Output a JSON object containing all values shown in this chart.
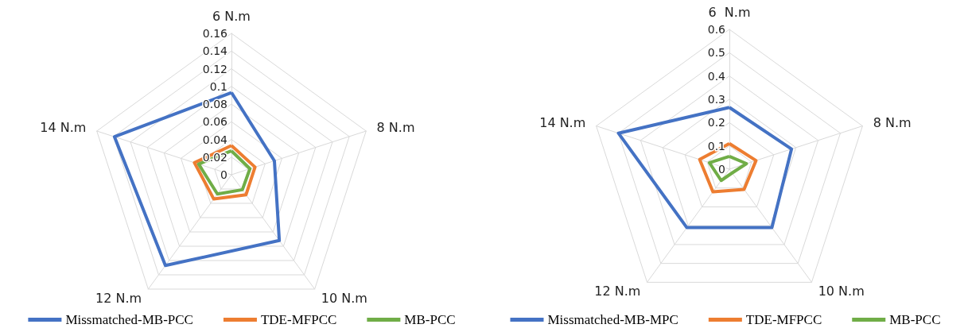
{
  "chart_data": [
    {
      "type": "radar",
      "categories": [
        "6 N.m",
        "8 N.m",
        "10 N.m",
        "12 N.m",
        "14 N.m"
      ],
      "ylim": [
        0,
        0.16
      ],
      "yticks": [
        0,
        0.02,
        0.04,
        0.06,
        0.08,
        0.1,
        0.12,
        0.14,
        0.16
      ],
      "grid": true,
      "legend": "bottom",
      "marker": "none",
      "series": [
        {
          "name": "Missmatched-MB-PCC",
          "color": "#4472c4",
          "values": [
            0.093,
            0.051,
            0.092,
            0.127,
            0.139
          ]
        },
        {
          "name": "TDE-MFPCC",
          "color": "#ed7d31",
          "values": [
            0.033,
            0.028,
            0.028,
            0.034,
            0.044
          ]
        },
        {
          "name": "MB-PCC",
          "color": "#70ad47",
          "values": [
            0.027,
            0.022,
            0.021,
            0.027,
            0.039
          ]
        }
      ]
    },
    {
      "type": "radar",
      "categories": [
        "6  N.m",
        "8 N.m",
        "10 N.m",
        "12 N.m",
        "14 N.m"
      ],
      "ylim": [
        0,
        0.6
      ],
      "yticks": [
        0,
        0.1,
        0.2,
        0.3,
        0.4,
        0.5,
        0.6
      ],
      "grid": true,
      "legend": "bottom",
      "marker": "none",
      "series": [
        {
          "name": "Missmatched-MB-MPC",
          "color": "#4472c4",
          "values": [
            0.265,
            0.28,
            0.31,
            0.31,
            0.5
          ]
        },
        {
          "name": "TDE-MFPCC",
          "color": "#ed7d31",
          "values": [
            0.11,
            0.12,
            0.107,
            0.12,
            0.134
          ]
        },
        {
          "name": "MB-PCC",
          "color": "#70ad47",
          "values": [
            0.055,
            0.077,
            0.02,
            0.06,
            0.09
          ]
        }
      ]
    }
  ]
}
